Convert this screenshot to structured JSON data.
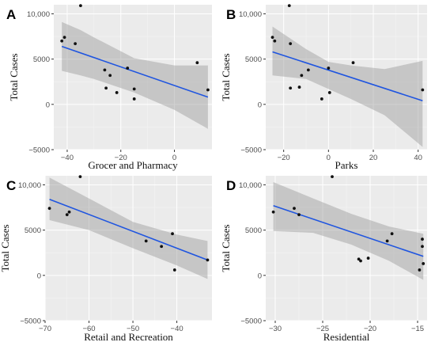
{
  "chart_data": [
    {
      "type": "scatter",
      "panel_label": "A",
      "xlabel": "Grocer and Pharmacy",
      "ylabel": "Total Cases",
      "xlim": [
        -45,
        14
      ],
      "ylim": [
        -5000,
        11000
      ],
      "xticks": [
        -40,
        -20,
        0
      ],
      "yticks": [
        -5000,
        0,
        5000,
        10000
      ],
      "ytick_labels": [
        "−5000",
        "0",
        "5000",
        "10,000"
      ],
      "grid": true,
      "points": [
        {
          "x": -42,
          "y": 7000
        },
        {
          "x": -41,
          "y": 7400
        },
        {
          "x": -37,
          "y": 6700
        },
        {
          "x": -35,
          "y": 10900
        },
        {
          "x": -26,
          "y": 3800
        },
        {
          "x": -25.5,
          "y": 1800
        },
        {
          "x": -24,
          "y": 3200
        },
        {
          "x": -21.5,
          "y": 1300
        },
        {
          "x": -17.5,
          "y": 4000
        },
        {
          "x": -15,
          "y": 1700
        },
        {
          "x": -15,
          "y": 600
        },
        {
          "x": 8.5,
          "y": 4600
        },
        {
          "x": 12.5,
          "y": 1600
        }
      ],
      "fit_line": {
        "x": [
          -42,
          12.5
        ],
        "y": [
          6400,
          800
        ]
      },
      "confidence_band": {
        "x": [
          -42,
          -35,
          -30,
          -15,
          0,
          12.5
        ],
        "lower": [
          3700,
          3200,
          2800,
          1300,
          -600,
          -2700
        ],
        "upper": [
          9100,
          8200,
          7400,
          5100,
          4300,
          4300
        ]
      }
    },
    {
      "type": "scatter",
      "panel_label": "B",
      "xlabel": "Parks",
      "ylabel": "Total Cases",
      "xlim": [
        -28,
        44
      ],
      "ylim": [
        -5000,
        11000
      ],
      "xticks": [
        -20,
        0,
        20,
        40
      ],
      "yticks": [
        -5000,
        0,
        5000,
        10000
      ],
      "ytick_labels": [
        "−5000",
        "0",
        "5000",
        "10,000"
      ],
      "grid": true,
      "points": [
        {
          "x": -25,
          "y": 7400
        },
        {
          "x": -24,
          "y": 7000
        },
        {
          "x": -17.5,
          "y": 10900
        },
        {
          "x": -17,
          "y": 6700
        },
        {
          "x": -17,
          "y": 1800
        },
        {
          "x": -13,
          "y": 1900
        },
        {
          "x": -12,
          "y": 3200
        },
        {
          "x": -9,
          "y": 3800
        },
        {
          "x": -3,
          "y": 600
        },
        {
          "x": 0,
          "y": 4000
        },
        {
          "x": 0.5,
          "y": 1300
        },
        {
          "x": 11,
          "y": 4600
        },
        {
          "x": 42,
          "y": 1600
        }
      ],
      "fit_line": {
        "x": [
          -25,
          42
        ],
        "y": [
          5800,
          400
        ]
      },
      "confidence_band": {
        "x": [
          -25,
          -10,
          0,
          10,
          25,
          42
        ],
        "lower": [
          3200,
          2800,
          1700,
          600,
          -1200,
          -4700
        ],
        "upper": [
          8600,
          6100,
          4700,
          4300,
          3900,
          4800
        ]
      }
    },
    {
      "type": "scatter",
      "panel_label": "C",
      "xlabel": "Retail and Recreation",
      "ylabel": "Total Cases",
      "xlim": [
        -70,
        -32
      ],
      "ylim": [
        -5000,
        11000
      ],
      "xticks": [
        -70,
        -60,
        -50,
        -40
      ],
      "yticks": [
        -5000,
        0,
        5000,
        10000
      ],
      "ytick_labels": [
        "−5000",
        "0",
        "5000",
        "10,000"
      ],
      "grid": true,
      "points": [
        {
          "x": -69,
          "y": 7400
        },
        {
          "x": -65,
          "y": 6700
        },
        {
          "x": -64.5,
          "y": 7000
        },
        {
          "x": -62,
          "y": 10900
        },
        {
          "x": -47,
          "y": 3800
        },
        {
          "x": -43.5,
          "y": 3200
        },
        {
          "x": -41,
          "y": 4600
        },
        {
          "x": -40.5,
          "y": 600
        },
        {
          "x": -33,
          "y": 1700
        }
      ],
      "fit_line": {
        "x": [
          -69,
          -33
        ],
        "y": [
          8400,
          1700
        ]
      },
      "confidence_band": {
        "x": [
          -69,
          -60,
          -50,
          -40,
          -33
        ],
        "lower": [
          6100,
          5000,
          3000,
          1100,
          -400
        ],
        "upper": [
          10800,
          8500,
          5900,
          4500,
          3800
        ]
      }
    },
    {
      "type": "scatter",
      "panel_label": "D",
      "xlabel": "Residential",
      "ylabel": "Total Cases",
      "xlim": [
        -31,
        -14
      ],
      "ylim": [
        -5000,
        11000
      ],
      "xticks": [
        -30,
        -25,
        -20,
        -15
      ],
      "yticks": [
        -5000,
        0,
        5000,
        10000
      ],
      "ytick_labels": [
        "−5000",
        "0",
        "5000",
        "10,000"
      ],
      "grid": true,
      "points": [
        {
          "x": -30.2,
          "y": 7000
        },
        {
          "x": -28,
          "y": 7400
        },
        {
          "x": -27.5,
          "y": 6700
        },
        {
          "x": -24,
          "y": 10900
        },
        {
          "x": -21.2,
          "y": 1800
        },
        {
          "x": -21,
          "y": 1600
        },
        {
          "x": -20.2,
          "y": 1900
        },
        {
          "x": -18.2,
          "y": 3800
        },
        {
          "x": -17.7,
          "y": 4600
        },
        {
          "x": -14.8,
          "y": 600
        },
        {
          "x": -14.5,
          "y": 4000
        },
        {
          "x": -14.5,
          "y": 3200
        },
        {
          "x": -14.4,
          "y": 1300
        }
      ],
      "fit_line": {
        "x": [
          -30.2,
          -14.4
        ],
        "y": [
          7700,
          2100
        ]
      },
      "confidence_band": {
        "x": [
          -30.2,
          -26,
          -22,
          -18,
          -14.4
        ],
        "lower": [
          4900,
          4700,
          3400,
          1600,
          -500
        ],
        "upper": [
          10300,
          8500,
          6800,
          5400,
          4600
        ]
      }
    }
  ]
}
